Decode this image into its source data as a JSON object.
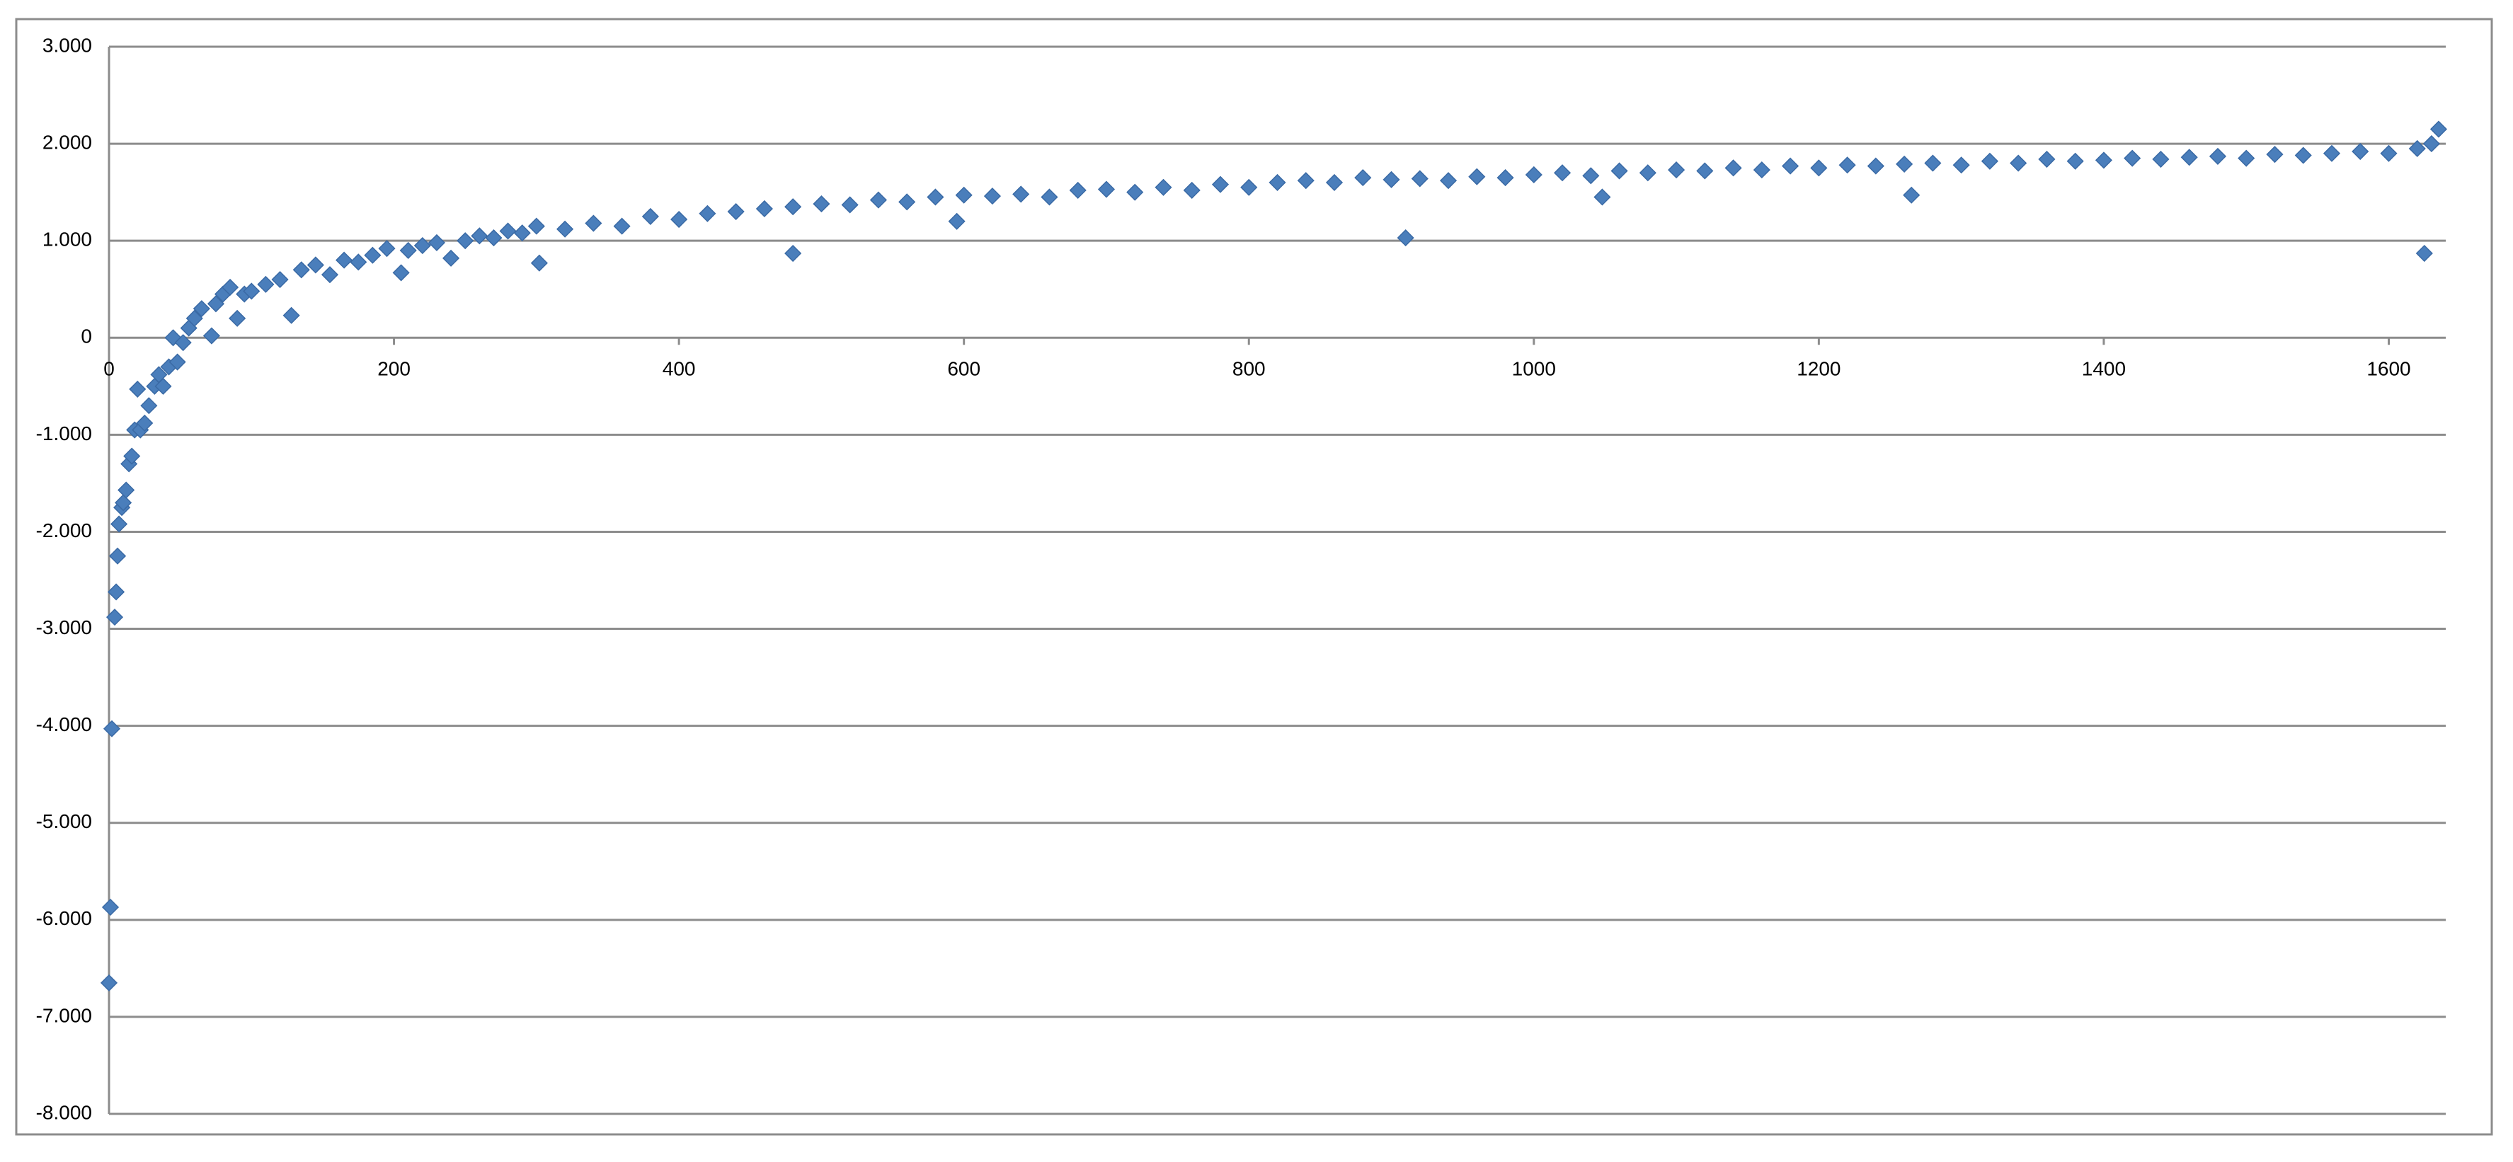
{
  "chart_data": {
    "type": "scatter",
    "x": [
      0,
      1,
      2,
      4,
      5,
      6,
      7,
      9,
      10,
      12,
      14,
      16,
      18,
      20,
      22,
      25,
      28,
      32,
      35,
      38,
      42,
      45,
      48,
      52,
      56,
      60,
      65,
      72,
      75,
      80,
      85,
      90,
      95,
      100,
      110,
      120,
      128,
      135,
      145,
      155,
      165,
      175,
      185,
      195,
      205,
      210,
      220,
      230,
      240,
      250,
      260,
      270,
      280,
      290,
      300,
      302,
      320,
      340,
      360,
      380,
      400,
      420,
      440,
      460,
      480,
      480,
      500,
      520,
      540,
      560,
      580,
      595,
      600,
      620,
      640,
      660,
      680,
      700,
      720,
      740,
      760,
      780,
      800,
      820,
      840,
      860,
      880,
      900,
      910,
      920,
      940,
      960,
      980,
      1000,
      1020,
      1040,
      1048,
      1060,
      1080,
      1100,
      1120,
      1140,
      1160,
      1180,
      1200,
      1220,
      1240,
      1260,
      1265,
      1280,
      1300,
      1320,
      1340,
      1360,
      1380,
      1400,
      1420,
      1440,
      1460,
      1480,
      1500,
      1520,
      1540,
      1560,
      1580,
      1600,
      1620,
      1625,
      1630,
      1635
    ],
    "values": [
      -6.65,
      -5.87,
      -4.03,
      -2.88,
      -2.62,
      -2.25,
      -1.92,
      -1.75,
      -1.7,
      -1.57,
      -1.3,
      -1.22,
      -0.95,
      -0.53,
      -0.95,
      -0.88,
      -0.7,
      -0.5,
      -0.38,
      -0.5,
      -0.3,
      0,
      -0.25,
      -0.05,
      0.1,
      0.2,
      0.3,
      0.02,
      0.35,
      0.45,
      0.52,
      0.2,
      0.45,
      0.48,
      0.55,
      0.6,
      0.23,
      0.7,
      0.75,
      0.65,
      0.8,
      0.78,
      0.85,
      0.92,
      0.67,
      0.9,
      0.95,
      0.98,
      0.82,
      1.0,
      1.05,
      1.03,
      1.1,
      1.08,
      1.15,
      0.77,
      1.12,
      1.18,
      1.15,
      1.25,
      1.22,
      1.28,
      1.3,
      1.33,
      1.35,
      0.87,
      1.38,
      1.37,
      1.42,
      1.4,
      1.45,
      1.2,
      1.47,
      1.46,
      1.48,
      1.45,
      1.52,
      1.53,
      1.5,
      1.55,
      1.52,
      1.58,
      1.55,
      1.6,
      1.62,
      1.6,
      1.65,
      1.63,
      1.03,
      1.64,
      1.62,
      1.66,
      1.65,
      1.68,
      1.7,
      1.67,
      1.45,
      1.72,
      1.7,
      1.73,
      1.72,
      1.75,
      1.73,
      1.77,
      1.75,
      1.78,
      1.77,
      1.79,
      1.47,
      1.8,
      1.78,
      1.82,
      1.8,
      1.84,
      1.82,
      1.83,
      1.85,
      1.84,
      1.86,
      1.87,
      1.85,
      1.89,
      1.88,
      1.9,
      1.92,
      1.9,
      1.95,
      0.87,
      2.0,
      2.15
    ],
    "color": "#4a7ebb",
    "xlim": [
      0,
      1640
    ],
    "xticks": [
      0,
      200,
      400,
      600,
      800,
      1000,
      1200,
      1400,
      1600
    ],
    "ylim": [
      -8,
      3
    ],
    "yticks": [
      {
        "value": 3,
        "label": "3.000"
      },
      {
        "value": 2,
        "label": "2.000"
      },
      {
        "value": 1,
        "label": "1.000"
      },
      0,
      {
        "value": -1,
        "label": "-1.000"
      },
      {
        "value": -2,
        "label": "-2.000"
      },
      {
        "value": -3,
        "label": "-3.000"
      },
      {
        "value": -4,
        "label": "-4.000"
      },
      {
        "value": -5,
        "label": "-5.000"
      },
      {
        "value": -6,
        "label": "-6.000"
      },
      {
        "value": -7,
        "label": "-7.000"
      },
      {
        "value": -8,
        "label": "-8.000"
      }
    ],
    "grid": true
  }
}
